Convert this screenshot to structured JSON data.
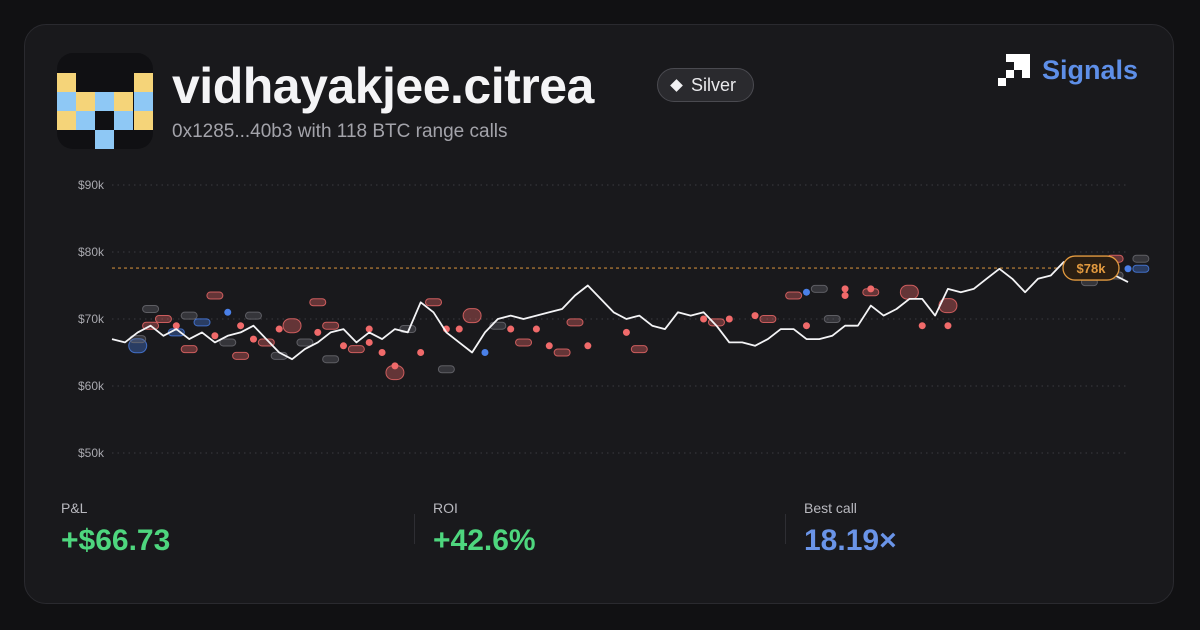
{
  "profile": {
    "username": "vidhayakjee.citrea",
    "badge": "Silver",
    "subtitle": "0x1285...40b3 with 118 BTC range calls"
  },
  "brand": {
    "label": "Signals",
    "icon": "signals-logo-icon"
  },
  "colors": {
    "background": "#111113",
    "card": "#19191c",
    "accent_blue": "#5e8fe8",
    "positive_green": "#4ed67e",
    "call_red": "#f06a6a",
    "call_blue": "#4a80e8",
    "call_gray": "#6b6b72",
    "current_price_orange": "#e39a3f"
  },
  "stats": {
    "pnl_label": "P&L",
    "pnl_value": "+$66.73",
    "roi_label": "ROI",
    "roi_value": "+42.6%",
    "best_label": "Best call",
    "best_value": "18.19×"
  },
  "chart_data": {
    "type": "line",
    "y_ticks": [
      90000,
      80000,
      70000,
      60000,
      50000
    ],
    "y_tick_labels": [
      "$90k",
      "$80k",
      "$70k",
      "$60k",
      "$50k"
    ],
    "ylim": [
      50000,
      90000
    ],
    "grid": true,
    "current_price": 77600,
    "current_price_label": "$78k",
    "price_series": [
      67000,
      66500,
      68000,
      69000,
      67500,
      68500,
      67000,
      68000,
      66500,
      67500,
      68000,
      69000,
      67000,
      65000,
      64000,
      65500,
      66500,
      68000,
      68500,
      66500,
      68000,
      67000,
      68500,
      68000,
      72500,
      71000,
      68000,
      66500,
      65000,
      68000,
      70000,
      70500,
      70000,
      70500,
      71000,
      71500,
      73500,
      75000,
      73000,
      71000,
      70000,
      70500,
      69000,
      68500,
      71000,
      70500,
      71000,
      69000,
      66500,
      66500,
      66000,
      67000,
      68500,
      68500,
      67000,
      67000,
      67500,
      69000,
      69000,
      72000,
      70500,
      71500,
      73000,
      73000,
      70500,
      74500,
      74000,
      74500,
      76000,
      77500,
      76000,
      74000,
      76000,
      76500,
      78500,
      78000,
      77500,
      76500,
      76500,
      75500
    ],
    "calls": [
      {
        "x": 2,
        "y": 66000,
        "c": "blue",
        "s": "lg"
      },
      {
        "x": 2,
        "y": 67000,
        "c": "gray",
        "s": "md"
      },
      {
        "x": 3,
        "y": 69000,
        "c": "red",
        "s": "sm"
      },
      {
        "x": 3,
        "y": 71500,
        "c": "gray",
        "s": "md"
      },
      {
        "x": 4,
        "y": 70000,
        "c": "red",
        "s": "md"
      },
      {
        "x": 5,
        "y": 68000,
        "c": "blue",
        "s": "sm"
      },
      {
        "x": 5,
        "y": 69000,
        "c": "red",
        "s": "dot"
      },
      {
        "x": 6,
        "y": 65500,
        "c": "red",
        "s": "md"
      },
      {
        "x": 6,
        "y": 70500,
        "c": "gray",
        "s": "md"
      },
      {
        "x": 7,
        "y": 69500,
        "c": "blue",
        "s": "md"
      },
      {
        "x": 8,
        "y": 67500,
        "c": "red",
        "s": "dot"
      },
      {
        "x": 8,
        "y": 73500,
        "c": "red",
        "s": "md"
      },
      {
        "x": 9,
        "y": 71000,
        "c": "blue",
        "s": "dot"
      },
      {
        "x": 9,
        "y": 66500,
        "c": "gray",
        "s": "md"
      },
      {
        "x": 10,
        "y": 64500,
        "c": "red",
        "s": "md"
      },
      {
        "x": 10,
        "y": 69000,
        "c": "red",
        "s": "dot"
      },
      {
        "x": 11,
        "y": 67000,
        "c": "red",
        "s": "dot"
      },
      {
        "x": 11,
        "y": 70500,
        "c": "gray",
        "s": "md"
      },
      {
        "x": 12,
        "y": 66500,
        "c": "red",
        "s": "md"
      },
      {
        "x": 13,
        "y": 68500,
        "c": "red",
        "s": "dot"
      },
      {
        "x": 13,
        "y": 64500,
        "c": "gray",
        "s": "md"
      },
      {
        "x": 14,
        "y": 69000,
        "c": "red",
        "s": "lg"
      },
      {
        "x": 15,
        "y": 66500,
        "c": "gray",
        "s": "md"
      },
      {
        "x": 16,
        "y": 68000,
        "c": "red",
        "s": "dot"
      },
      {
        "x": 16,
        "y": 72500,
        "c": "red",
        "s": "md"
      },
      {
        "x": 17,
        "y": 69000,
        "c": "red",
        "s": "md"
      },
      {
        "x": 17,
        "y": 64000,
        "c": "gray",
        "s": "md"
      },
      {
        "x": 18,
        "y": 66000,
        "c": "red",
        "s": "dot"
      },
      {
        "x": 19,
        "y": 65500,
        "c": "red",
        "s": "md"
      },
      {
        "x": 20,
        "y": 68500,
        "c": "red",
        "s": "dot"
      },
      {
        "x": 20,
        "y": 66500,
        "c": "red",
        "s": "dot"
      },
      {
        "x": 21,
        "y": 65000,
        "c": "red",
        "s": "dot"
      },
      {
        "x": 22,
        "y": 63000,
        "c": "red",
        "s": "dot"
      },
      {
        "x": 22,
        "y": 62000,
        "c": "red",
        "s": "lg"
      },
      {
        "x": 23,
        "y": 68500,
        "c": "gray",
        "s": "md"
      },
      {
        "x": 24,
        "y": 65000,
        "c": "red",
        "s": "dot"
      },
      {
        "x": 25,
        "y": 72500,
        "c": "red",
        "s": "md"
      },
      {
        "x": 26,
        "y": 68500,
        "c": "red",
        "s": "dot"
      },
      {
        "x": 26,
        "y": 62500,
        "c": "gray",
        "s": "md"
      },
      {
        "x": 27,
        "y": 68500,
        "c": "red",
        "s": "dot"
      },
      {
        "x": 28,
        "y": 70500,
        "c": "red",
        "s": "lg"
      },
      {
        "x": 29,
        "y": 65000,
        "c": "blue",
        "s": "dot"
      },
      {
        "x": 30,
        "y": 69000,
        "c": "gray",
        "s": "md"
      },
      {
        "x": 31,
        "y": 68500,
        "c": "red",
        "s": "dot"
      },
      {
        "x": 32,
        "y": 66500,
        "c": "red",
        "s": "md"
      },
      {
        "x": 33,
        "y": 68500,
        "c": "red",
        "s": "dot"
      },
      {
        "x": 34,
        "y": 66000,
        "c": "red",
        "s": "dot"
      },
      {
        "x": 35,
        "y": 65000,
        "c": "red",
        "s": "md"
      },
      {
        "x": 36,
        "y": 69500,
        "c": "red",
        "s": "md"
      },
      {
        "x": 37,
        "y": 66000,
        "c": "red",
        "s": "dot"
      },
      {
        "x": 40,
        "y": 68000,
        "c": "red",
        "s": "dot"
      },
      {
        "x": 41,
        "y": 65500,
        "c": "red",
        "s": "md"
      },
      {
        "x": 46,
        "y": 70000,
        "c": "red",
        "s": "dot"
      },
      {
        "x": 47,
        "y": 69500,
        "c": "red",
        "s": "md"
      },
      {
        "x": 48,
        "y": 70000,
        "c": "red",
        "s": "dot"
      },
      {
        "x": 50,
        "y": 70500,
        "c": "red",
        "s": "dot"
      },
      {
        "x": 51,
        "y": 70000,
        "c": "red",
        "s": "md"
      },
      {
        "x": 53,
        "y": 73500,
        "c": "red",
        "s": "md"
      },
      {
        "x": 54,
        "y": 74000,
        "c": "blue",
        "s": "dot"
      },
      {
        "x": 54,
        "y": 69000,
        "c": "red",
        "s": "dot"
      },
      {
        "x": 55,
        "y": 74500,
        "c": "gray",
        "s": "md"
      },
      {
        "x": 56,
        "y": 70000,
        "c": "gray",
        "s": "md"
      },
      {
        "x": 57,
        "y": 74500,
        "c": "red",
        "s": "dot"
      },
      {
        "x": 57,
        "y": 73500,
        "c": "red",
        "s": "dot"
      },
      {
        "x": 59,
        "y": 74000,
        "c": "red",
        "s": "md"
      },
      {
        "x": 59,
        "y": 74500,
        "c": "red",
        "s": "dot"
      },
      {
        "x": 62,
        "y": 74000,
        "c": "red",
        "s": "lg"
      },
      {
        "x": 63,
        "y": 69000,
        "c": "red",
        "s": "dot"
      },
      {
        "x": 65,
        "y": 72000,
        "c": "red",
        "s": "lg"
      },
      {
        "x": 65,
        "y": 69000,
        "c": "red",
        "s": "dot"
      },
      {
        "x": 77,
        "y": 77500,
        "c": "gray",
        "s": "md"
      },
      {
        "x": 76,
        "y": 75500,
        "c": "gray",
        "s": "md"
      },
      {
        "x": 75,
        "y": 78000,
        "c": "blue",
        "s": "md"
      },
      {
        "x": 78,
        "y": 79000,
        "c": "red",
        "s": "md"
      },
      {
        "x": 78,
        "y": 78000,
        "c": "red",
        "s": "dot"
      },
      {
        "x": 78,
        "y": 76500,
        "c": "gray",
        "s": "md"
      },
      {
        "x": 79,
        "y": 77500,
        "c": "blue",
        "s": "dot"
      },
      {
        "x": 80,
        "y": 79000,
        "c": "gray",
        "s": "md"
      },
      {
        "x": 80,
        "y": 77500,
        "c": "blue",
        "s": "md"
      }
    ]
  }
}
